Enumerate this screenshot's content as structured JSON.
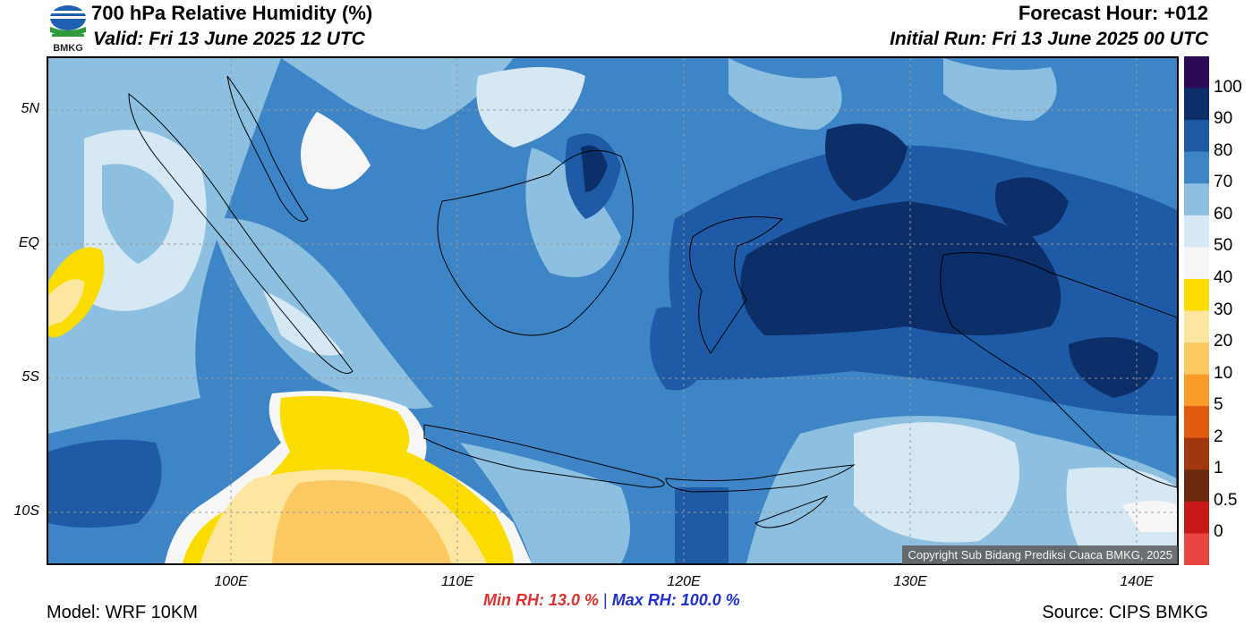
{
  "header": {
    "title": "700 hPa Relative Humidity (%)",
    "valid": "Valid: Fri 13 June 2025 12 UTC",
    "forecast_hour": "Forecast Hour: +012",
    "initial_run": "Initial Run: Fri 13 June 2025 00 UTC",
    "logo_text": "BMKG"
  },
  "axes": {
    "lat_labels": [
      "5N",
      "EQ",
      "5S",
      "10S"
    ],
    "lon_labels": [
      "100E",
      "110E",
      "120E",
      "130E",
      "140E"
    ]
  },
  "colorbar": {
    "labels": [
      "100",
      "90",
      "80",
      "70",
      "60",
      "50",
      "40",
      "30",
      "20",
      "10",
      "5",
      "2",
      "1",
      "0.5",
      "0"
    ],
    "colors": [
      "#2d0a55",
      "#0c2f6a",
      "#1f5aa6",
      "#3d85c6",
      "#8dc0e0",
      "#d6e8f3",
      "#f6f6f6",
      "#fbdc00",
      "#fde7a0",
      "#fcc862",
      "#fb9c2a",
      "#e05a10",
      "#a2360c",
      "#6b2a10",
      "#c81818",
      "#ea4440"
    ]
  },
  "stats": {
    "min_rh": "Min RH:  13.0 %",
    "separator": "|",
    "max_rh": "Max RH: 100.0 %"
  },
  "footer": {
    "model": "Model: WRF 10KM",
    "source": "Source: CIPS BMKG",
    "copyright": "Copyright Sub Bidang Prediksi Cuaca BMKG, 2025"
  }
}
